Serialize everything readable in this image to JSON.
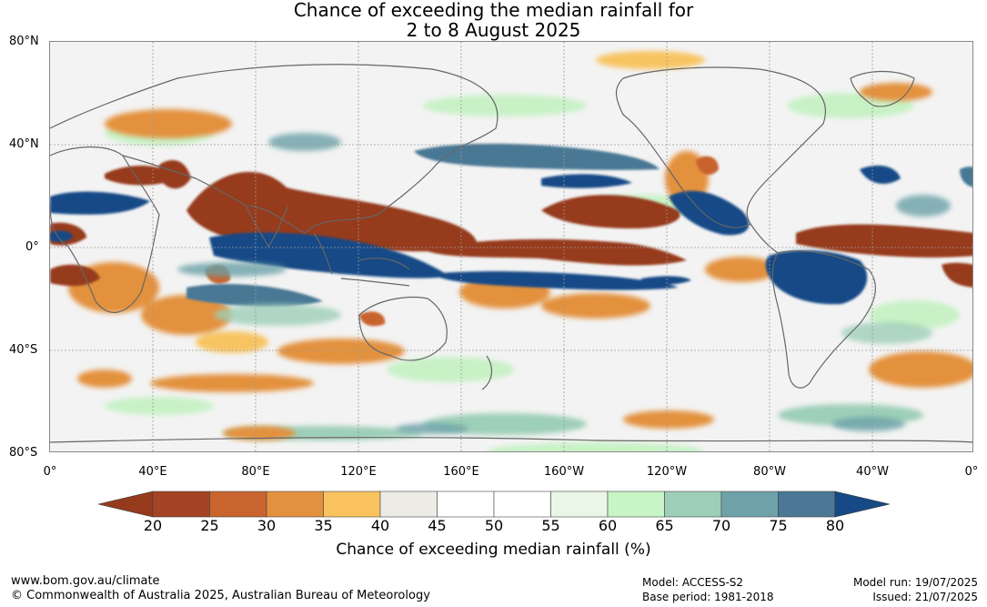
{
  "title_line1": "Chance of exceeding the median rainfall for",
  "title_line2": "2 to 8 August 2025",
  "map": {
    "lat_labels": [
      "80°N",
      "40°N",
      "0°",
      "40°S",
      "80°S"
    ],
    "lon_labels": [
      "0°",
      "40°E",
      "80°E",
      "120°E",
      "160°E",
      "160°W",
      "120°W",
      "80°W",
      "40°W",
      "0°"
    ],
    "colors": {
      "land_outline": "#666666",
      "grid": "#9a9a9a",
      "dry_strong": "#963a1d",
      "dry": "#c9642f",
      "dry_weak": "#e3913e",
      "dry_light": "#f8c462",
      "wet_light": "#c8f2c6",
      "wet": "#9ecfb8",
      "wet_mid": "#6ba1a8",
      "wet_strong": "#164a86"
    }
  },
  "colorbar": {
    "ticks": [
      "20",
      "25",
      "30",
      "35",
      "40",
      "45",
      "50",
      "55",
      "60",
      "65",
      "70",
      "75",
      "80"
    ],
    "colors": [
      "#a54325",
      "#c9642f",
      "#e3913e",
      "#fac35f",
      "#ecebe6",
      "#ffffff",
      "#ffffff",
      "#eaf6e8",
      "#c8f5c6",
      "#9dceb8",
      "#6fa2a8",
      "#4a7895"
    ],
    "low_color": "#963a1d",
    "high_color": "#164a86",
    "label": "Chance of exceeding median rainfall (%)"
  },
  "footer": {
    "url": "www.bom.gov.au/climate",
    "copyright": "© Commonwealth of Australia 2025, Australian Bureau of Meteorology",
    "model": "Model: ACCESS-S2",
    "base_period": "Base period: 1981-2018",
    "model_run": "Model run: 19/07/2025",
    "issued": "Issued: 21/07/2025"
  }
}
